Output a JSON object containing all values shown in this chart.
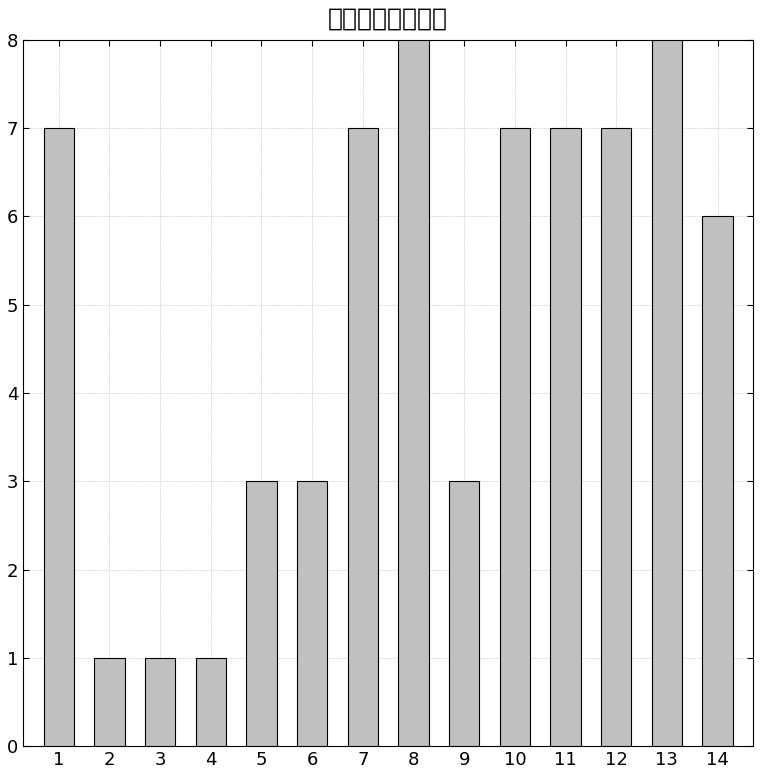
{
  "title": "时间特性分类结果",
  "categories": [
    1,
    2,
    3,
    4,
    5,
    6,
    7,
    8,
    9,
    10,
    11,
    12,
    13,
    14
  ],
  "values": [
    7,
    1,
    1,
    1,
    3,
    3,
    7,
    8,
    3,
    7,
    7,
    7,
    8,
    6
  ],
  "bar_color": "#c0c0c0",
  "bar_edgecolor": "#000000",
  "ylim": [
    0,
    8
  ],
  "yticks": [
    0,
    1,
    2,
    3,
    4,
    5,
    6,
    7,
    8
  ],
  "xticks": [
    1,
    2,
    3,
    4,
    5,
    6,
    7,
    8,
    9,
    10,
    11,
    12,
    13,
    14
  ],
  "title_fontsize": 18,
  "tick_fontsize": 13,
  "background_color": "#ffffff",
  "bar_width": 0.6
}
